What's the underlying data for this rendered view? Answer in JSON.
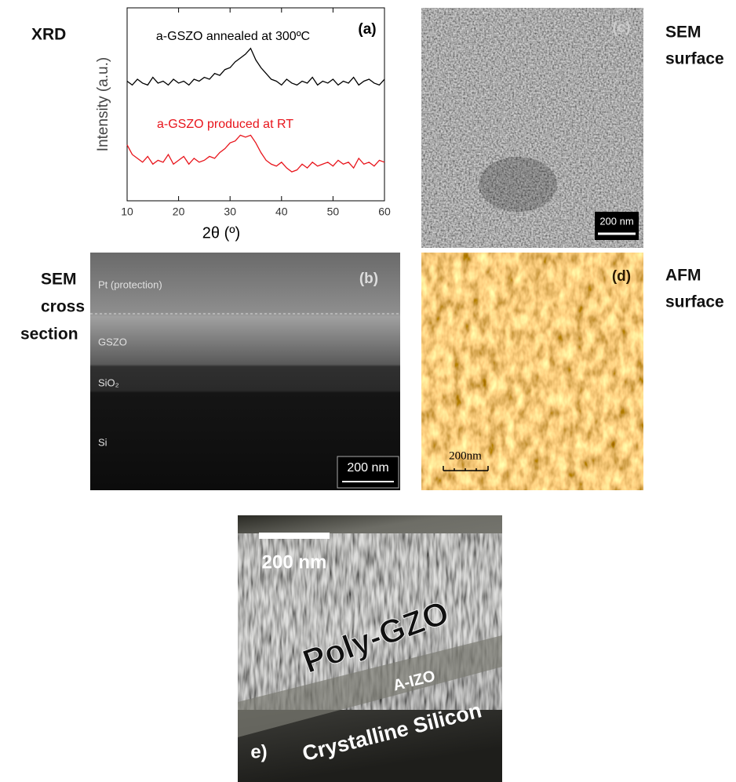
{
  "chart_data": {
    "type": "line",
    "x_label": "2θ (º)",
    "y_label": "Intensity (a.u.)",
    "x": [
      10,
      11,
      12,
      13,
      14,
      15,
      16,
      17,
      18,
      19,
      20,
      21,
      22,
      23,
      24,
      25,
      26,
      27,
      28,
      29,
      30,
      31,
      32,
      33,
      34,
      35,
      36,
      37,
      38,
      39,
      40,
      41,
      42,
      43,
      44,
      45,
      46,
      47,
      48,
      49,
      50,
      51,
      52,
      53,
      54,
      55,
      56,
      57,
      58,
      59,
      60
    ],
    "xlim": [
      10,
      60
    ],
    "xticks": [
      10,
      20,
      30,
      40,
      50,
      60
    ],
    "ylim": [
      0,
      10
    ],
    "series": [
      {
        "name": "a-GSZO annealed at 300ºC",
        "color": "#000000",
        "values": [
          6.2,
          6.0,
          6.3,
          6.1,
          6.0,
          6.4,
          6.1,
          6.2,
          6.0,
          6.3,
          6.1,
          6.2,
          6.0,
          6.3,
          6.2,
          6.4,
          6.3,
          6.6,
          6.5,
          6.8,
          6.9,
          7.2,
          7.4,
          7.6,
          7.9,
          7.3,
          6.9,
          6.6,
          6.3,
          6.2,
          6.0,
          6.3,
          6.1,
          6.0,
          6.2,
          6.1,
          6.4,
          6.0,
          6.2,
          6.1,
          6.3,
          6.0,
          6.2,
          6.1,
          6.4,
          6.0,
          6.2,
          6.3,
          6.1,
          6.0,
          6.3
        ]
      },
      {
        "name": "a-GSZO produced at RT",
        "color": "#e8141b",
        "values": [
          2.9,
          2.4,
          2.2,
          2.0,
          2.3,
          1.9,
          2.1,
          2.0,
          2.4,
          1.9,
          2.1,
          2.3,
          1.9,
          2.2,
          2.0,
          2.1,
          2.3,
          2.2,
          2.5,
          2.7,
          3.0,
          3.1,
          3.4,
          3.3,
          3.4,
          3.0,
          2.5,
          2.1,
          1.9,
          1.8,
          2.0,
          1.7,
          1.5,
          1.6,
          1.9,
          1.7,
          2.0,
          1.8,
          1.9,
          2.0,
          1.8,
          2.1,
          1.9,
          2.0,
          1.7,
          2.2,
          1.9,
          2.0,
          1.8,
          2.1,
          2.0
        ]
      }
    ]
  },
  "panels": {
    "a": {
      "label": "(a)",
      "side_label": [
        "XRD"
      ]
    },
    "b": {
      "label": "(b)",
      "side_label": [
        "SEM",
        "cross",
        "section"
      ],
      "layers": [
        "Pt (protection)",
        "GSZO",
        "SiO₂",
        "Si"
      ],
      "scale_bar": "200 nm"
    },
    "c": {
      "label": "(c)",
      "side_label": [
        "SEM",
        "surface"
      ],
      "scale_bar": "200 nm"
    },
    "d": {
      "label": "(d)",
      "side_label": [
        "AFM",
        "surface"
      ],
      "scale_bar": "200nm"
    },
    "e": {
      "label": "e)",
      "scale_bar": "200 nm",
      "layers": [
        "Poly-GZO",
        "A-IZO",
        "Crystalline Silicon"
      ]
    }
  }
}
